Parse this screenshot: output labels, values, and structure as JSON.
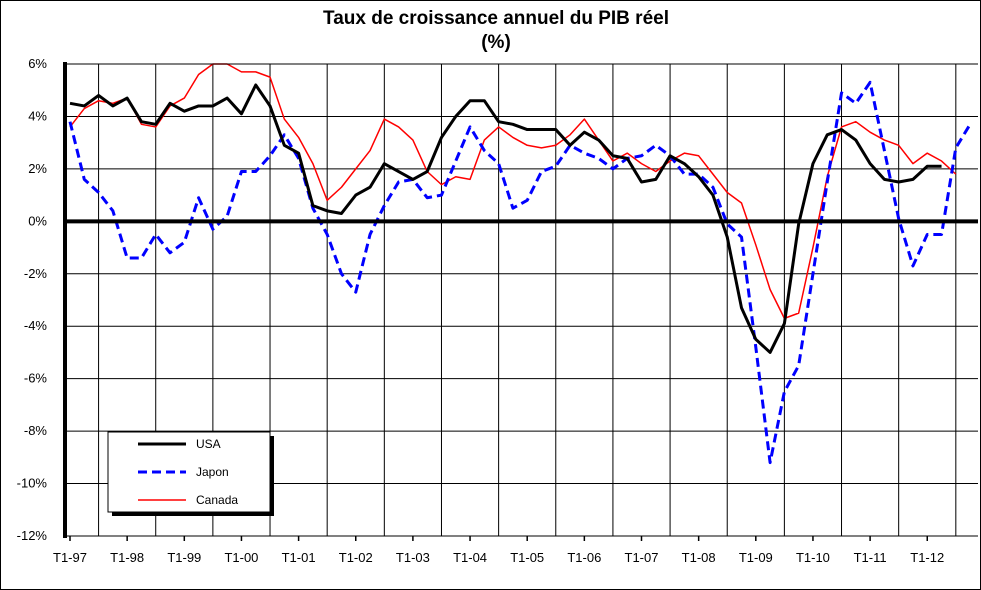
{
  "chart_data": {
    "type": "line",
    "title": "Taux de croissance annuel du PIB réel",
    "subtitle": "(%)",
    "xlabel": "",
    "ylabel": "",
    "ylim": [
      -12,
      6
    ],
    "y_ticks": [
      6,
      4,
      2,
      0,
      -2,
      -4,
      -6,
      -8,
      -10,
      -12
    ],
    "y_tick_labels": [
      "6%",
      "4%",
      "2%",
      "0%",
      "-2%",
      "-4%",
      "-6%",
      "-8%",
      "-10%",
      "-12%"
    ],
    "x_tick_labels": [
      "T1-97",
      "T1-98",
      "T1-99",
      "T1-00",
      "T1-01",
      "T1-02",
      "T1-03",
      "T1-04",
      "T1-05",
      "T1-06",
      "T1-07",
      "T1-08",
      "T1-09",
      "T1-10",
      "T1-11",
      "T1-12"
    ],
    "grid": true,
    "legend_position": "bottom-left",
    "series": [
      {
        "name": "USA",
        "color": "#000000",
        "style": "solid-thick",
        "values": [
          4.5,
          4.4,
          4.8,
          4.4,
          4.7,
          3.8,
          3.7,
          4.5,
          4.2,
          4.4,
          4.4,
          4.7,
          4.1,
          5.2,
          4.4,
          2.9,
          2.6,
          0.6,
          0.4,
          0.3,
          1.0,
          1.3,
          2.2,
          1.9,
          1.6,
          1.9,
          3.2,
          4.0,
          4.6,
          4.6,
          3.8,
          3.7,
          3.5,
          3.5,
          3.5,
          2.9,
          3.4,
          3.1,
          2.5,
          2.4,
          1.5,
          1.6,
          2.5,
          2.2,
          1.7,
          1.0,
          -0.6,
          -3.3,
          -4.5,
          -5.0,
          -3.9,
          -0.1,
          2.2,
          3.3,
          3.5,
          3.1,
          2.2,
          1.6,
          1.5,
          1.6,
          2.1,
          2.1
        ]
      },
      {
        "name": "Japon",
        "color": "#0000ff",
        "style": "dashed",
        "values": [
          3.8,
          1.6,
          1.1,
          0.4,
          -1.4,
          -1.4,
          -0.5,
          -1.2,
          -0.8,
          0.9,
          -0.3,
          0.2,
          1.9,
          1.9,
          2.5,
          3.3,
          2.4,
          0.5,
          -0.5,
          -2.0,
          -2.7,
          -0.5,
          0.6,
          1.5,
          1.6,
          0.9,
          1.0,
          2.3,
          3.6,
          2.7,
          2.2,
          0.5,
          0.8,
          1.9,
          2.1,
          2.9,
          2.6,
          2.4,
          2.0,
          2.4,
          2.5,
          2.9,
          2.5,
          1.8,
          1.8,
          1.3,
          -0.1,
          -0.6,
          -4.8,
          -9.2,
          -6.5,
          -5.5,
          -2.0,
          1.5,
          4.9,
          4.5,
          5.3,
          2.7,
          0.1,
          -1.7,
          -0.5,
          -0.5,
          2.8,
          3.7
        ]
      },
      {
        "name": "Canada",
        "color": "#ff0000",
        "style": "solid-thin",
        "values": [
          3.6,
          4.3,
          4.6,
          4.5,
          4.7,
          3.7,
          3.6,
          4.4,
          4.7,
          5.6,
          6.0,
          6.0,
          5.7,
          5.7,
          5.5,
          3.9,
          3.2,
          2.2,
          0.8,
          1.3,
          2.0,
          2.7,
          3.9,
          3.6,
          3.1,
          1.9,
          1.4,
          1.7,
          1.6,
          3.1,
          3.6,
          3.2,
          2.9,
          2.8,
          2.9,
          3.3,
          3.9,
          3.1,
          2.3,
          2.6,
          2.2,
          1.9,
          2.3,
          2.6,
          2.5,
          1.8,
          1.1,
          0.7,
          -0.9,
          -2.6,
          -3.7,
          -3.5,
          -1.0,
          1.7,
          3.6,
          3.8,
          3.4,
          3.1,
          2.9,
          2.2,
          2.6,
          2.3,
          1.8
        ]
      }
    ]
  }
}
